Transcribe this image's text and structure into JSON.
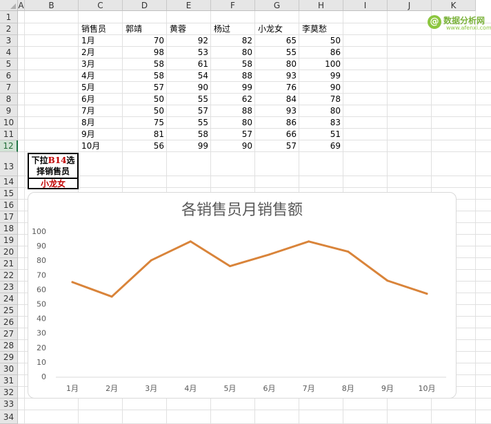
{
  "columns": [
    "A",
    "B",
    "C",
    "D",
    "E",
    "F",
    "G",
    "H",
    "I",
    "J",
    "K"
  ],
  "rows": [
    "1",
    "2",
    "3",
    "4",
    "5",
    "6",
    "7",
    "8",
    "9",
    "10",
    "11",
    "12",
    "13",
    "14",
    "15",
    "16",
    "17",
    "18",
    "19",
    "20",
    "21",
    "22",
    "23",
    "24",
    "25",
    "26",
    "27",
    "28",
    "29",
    "30",
    "31",
    "32",
    "33",
    "34"
  ],
  "selected_row": "12",
  "table": {
    "header": [
      "销售员",
      "郭靖",
      "黄蓉",
      "杨过",
      "小龙女",
      "李莫愁"
    ],
    "data": [
      [
        "1月",
        70,
        92,
        82,
        65,
        50
      ],
      [
        "2月",
        98,
        53,
        80,
        55,
        86
      ],
      [
        "3月",
        58,
        61,
        58,
        80,
        100
      ],
      [
        "4月",
        58,
        54,
        88,
        93,
        99
      ],
      [
        "5月",
        57,
        90,
        99,
        76,
        90
      ],
      [
        "6月",
        50,
        55,
        62,
        84,
        78
      ],
      [
        "7月",
        50,
        57,
        88,
        93,
        80
      ],
      [
        "8月",
        75,
        55,
        80,
        86,
        83
      ],
      [
        "9月",
        81,
        58,
        57,
        66,
        51
      ],
      [
        "10月",
        56,
        99,
        90,
        57,
        69
      ]
    ]
  },
  "selector": {
    "instruction_pre": "下拉",
    "instruction_ref": "B14",
    "instruction_post": "选",
    "instruction_line2": "择销售员",
    "selected_value": "小龙女"
  },
  "logo": {
    "name": "数据分析网",
    "url": "www.afenxi.com",
    "glyph": "@",
    "color": "#8cc63f"
  },
  "chart_data": {
    "type": "line",
    "title": "各销售员月销售额",
    "categories": [
      "1月",
      "2月",
      "3月",
      "4月",
      "5月",
      "6月",
      "7月",
      "8月",
      "9月",
      "10月"
    ],
    "series": [
      {
        "values": [
          65,
          55,
          80,
          93,
          76,
          84,
          93,
          86,
          66,
          57
        ],
        "color": "#d9843a"
      }
    ],
    "yticks": [
      "0",
      "10",
      "20",
      "30",
      "40",
      "50",
      "60",
      "70",
      "80",
      "90",
      "100"
    ],
    "ylim": [
      0,
      100
    ],
    "grid": false,
    "legend": "none"
  }
}
